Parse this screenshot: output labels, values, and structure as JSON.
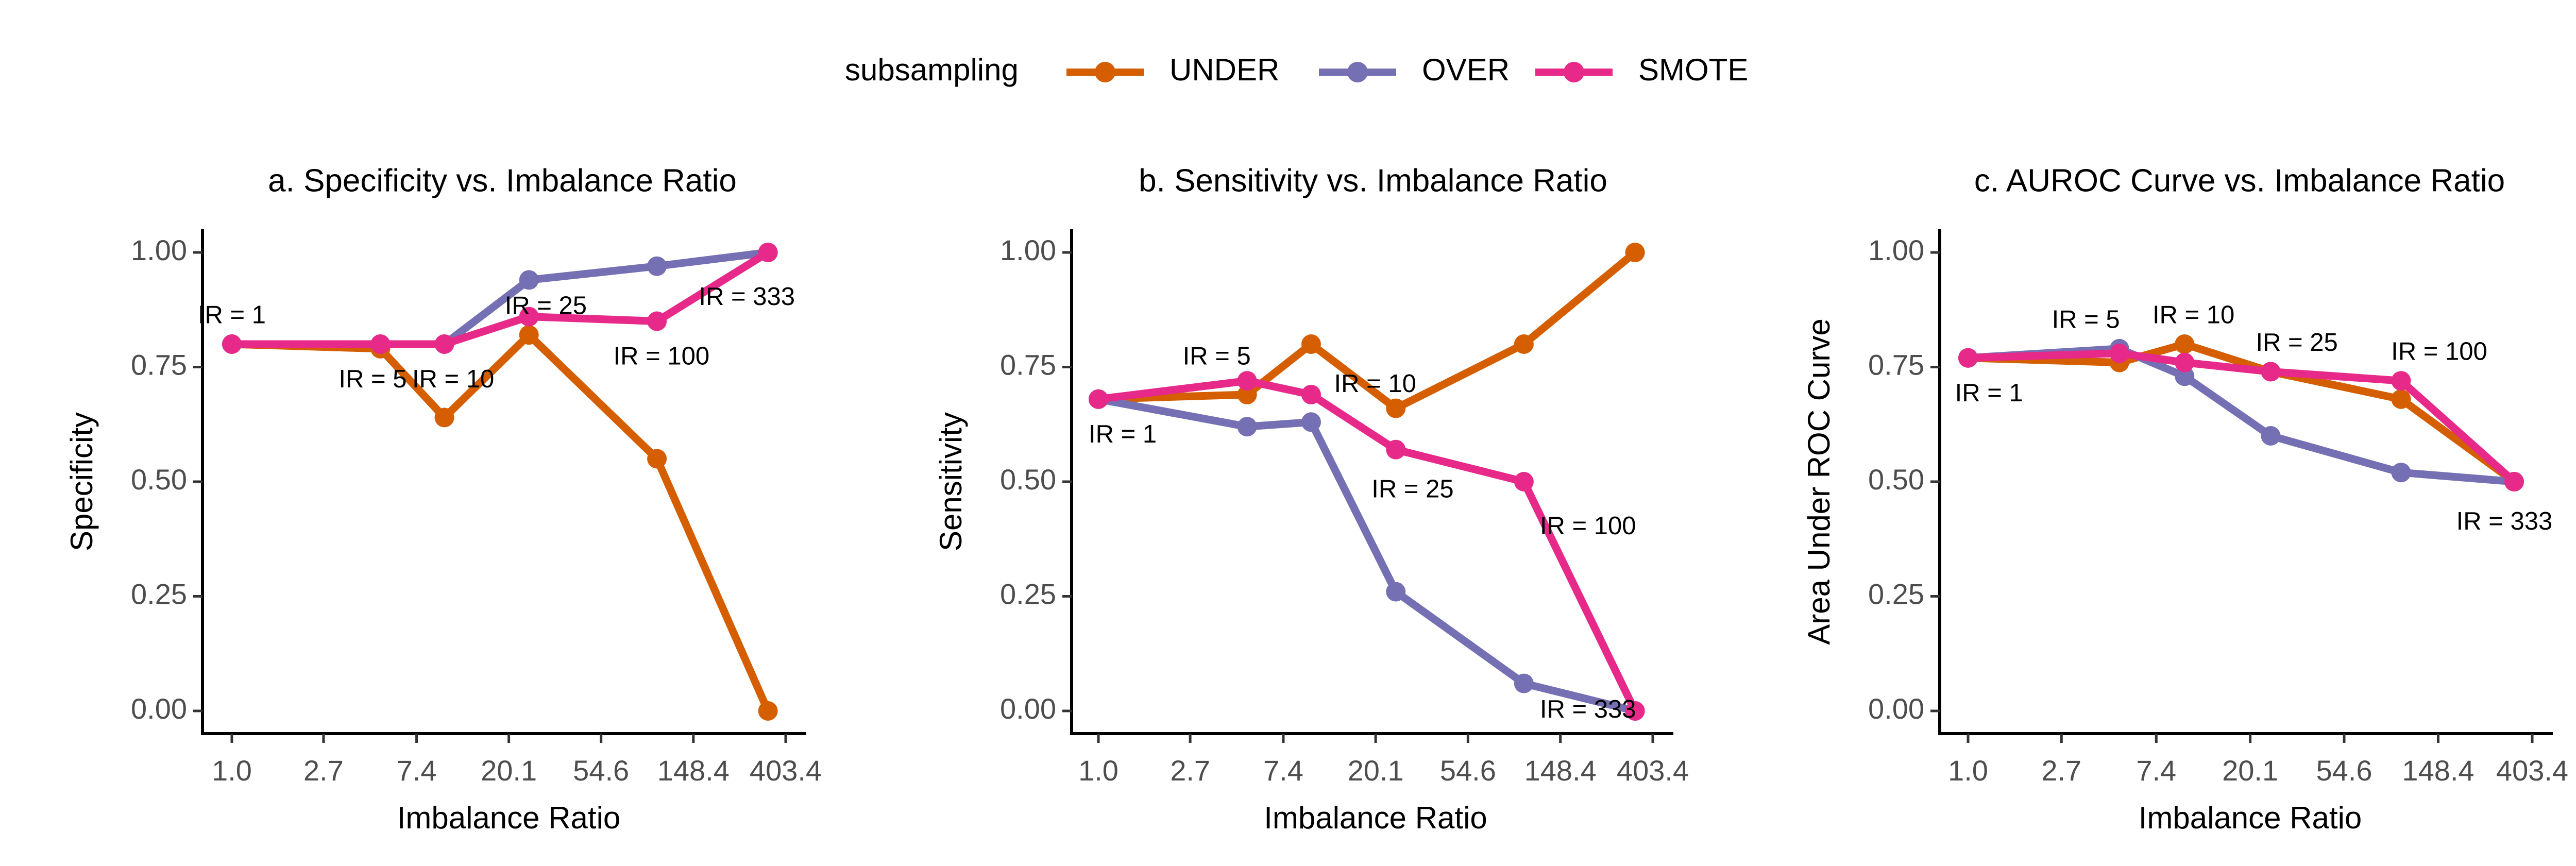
{
  "legend": {
    "title": "subsampling",
    "items": [
      {
        "label": "UNDER",
        "color": "#D55E00"
      },
      {
        "label": "OVER",
        "color": "#7570B3"
      },
      {
        "label": "SMOTE",
        "color": "#E7298A"
      }
    ]
  },
  "chart_data": [
    {
      "type": "line",
      "title": "a. Specificity vs. Imbalance Ratio",
      "xlabel": "Imbalance Ratio",
      "ylabel": "Specificity",
      "x_scale": "log",
      "x": [
        1,
        5,
        10,
        25,
        100,
        333
      ],
      "x_ticks": [
        1.0,
        2.7,
        7.4,
        20.1,
        54.6,
        148.4,
        403.4
      ],
      "x_tick_labels": [
        "1.0",
        "2.7",
        "7.4",
        "20.1",
        "54.6",
        "148.4",
        "403.4"
      ],
      "y_ticks": [
        0,
        0.25,
        0.5,
        0.75,
        1.0
      ],
      "y_tick_labels": [
        "0.00",
        "0.25",
        "0.50",
        "0.75",
        "1.00"
      ],
      "ylim": [
        0,
        1
      ],
      "series": [
        {
          "name": "UNDER",
          "color": "#D55E00",
          "values": [
            0.8,
            0.79,
            0.64,
            0.82,
            0.55,
            0.0
          ]
        },
        {
          "name": "OVER",
          "color": "#7570B3",
          "values": [
            0.8,
            0.8,
            0.8,
            0.94,
            0.97,
            1.0
          ]
        },
        {
          "name": "SMOTE",
          "color": "#E7298A",
          "values": [
            0.8,
            0.8,
            0.8,
            0.86,
            0.85,
            1.0
          ]
        }
      ],
      "annotations": [
        {
          "text": "IR = 1",
          "x": 1,
          "y": 0.86
        },
        {
          "text": "IR = 5",
          "x": 4.6,
          "y": 0.72
        },
        {
          "text": "IR = 10",
          "x": 11,
          "y": 0.72
        },
        {
          "text": "IR = 25",
          "x": 30,
          "y": 0.88
        },
        {
          "text": "IR = 100",
          "x": 105,
          "y": 0.77
        },
        {
          "text": "IR = 333",
          "x": 265,
          "y": 0.9
        }
      ]
    },
    {
      "type": "line",
      "title": "b. Sensitivity vs. Imbalance Ratio",
      "xlabel": "Imbalance Ratio",
      "ylabel": "Sensitivity",
      "x_scale": "log",
      "x": [
        1,
        5,
        10,
        25,
        100,
        333
      ],
      "x_ticks": [
        1.0,
        2.7,
        7.4,
        20.1,
        54.6,
        148.4,
        403.4
      ],
      "x_tick_labels": [
        "1.0",
        "2.7",
        "7.4",
        "20.1",
        "54.6",
        "148.4",
        "403.4"
      ],
      "y_ticks": [
        0,
        0.25,
        0.5,
        0.75,
        1.0
      ],
      "y_tick_labels": [
        "0.00",
        "0.25",
        "0.50",
        "0.75",
        "1.00"
      ],
      "ylim": [
        0,
        1
      ],
      "series": [
        {
          "name": "UNDER",
          "color": "#D55E00",
          "values": [
            0.68,
            0.69,
            0.8,
            0.66,
            0.8,
            1.0
          ]
        },
        {
          "name": "OVER",
          "color": "#7570B3",
          "values": [
            0.68,
            0.62,
            0.63,
            0.26,
            0.06,
            0.0
          ]
        },
        {
          "name": "SMOTE",
          "color": "#E7298A",
          "values": [
            0.68,
            0.72,
            0.69,
            0.57,
            0.5,
            0.0
          ]
        }
      ],
      "annotations": [
        {
          "text": "IR = 1",
          "x": 1.3,
          "y": 0.6
        },
        {
          "text": "IR = 5",
          "x": 3.6,
          "y": 0.77
        },
        {
          "text": "IR = 10",
          "x": 20,
          "y": 0.71
        },
        {
          "text": "IR = 25",
          "x": 30,
          "y": 0.48
        },
        {
          "text": "IR = 100",
          "x": 200,
          "y": 0.4
        },
        {
          "text": "IR = 333",
          "x": 200,
          "y": 0.0
        }
      ]
    },
    {
      "type": "line",
      "title": "c. AUROC Curve vs. Imbalance Ratio",
      "xlabel": "Imbalance Ratio",
      "ylabel": "Area Under ROC Curve",
      "x_scale": "log",
      "x": [
        1,
        5,
        10,
        25,
        100,
        333
      ],
      "x_ticks": [
        1.0,
        2.7,
        7.4,
        20.1,
        54.6,
        148.4,
        403.4
      ],
      "x_tick_labels": [
        "1.0",
        "2.7",
        "7.4",
        "20.1",
        "54.6",
        "148.4",
        "403.4"
      ],
      "y_ticks": [
        0,
        0.25,
        0.5,
        0.75,
        1.0
      ],
      "y_tick_labels": [
        "0.00",
        "0.25",
        "0.50",
        "0.75",
        "1.00"
      ],
      "ylim": [
        0,
        1
      ],
      "series": [
        {
          "name": "UNDER",
          "color": "#D55E00",
          "values": [
            0.77,
            0.76,
            0.8,
            0.74,
            0.68,
            0.5
          ]
        },
        {
          "name": "OVER",
          "color": "#7570B3",
          "values": [
            0.77,
            0.79,
            0.73,
            0.6,
            0.52,
            0.5
          ]
        },
        {
          "name": "SMOTE",
          "color": "#E7298A",
          "values": [
            0.77,
            0.78,
            0.76,
            0.74,
            0.72,
            0.5
          ]
        }
      ],
      "annotations": [
        {
          "text": "IR = 1",
          "x": 1.25,
          "y": 0.69
        },
        {
          "text": "IR = 5",
          "x": 3.5,
          "y": 0.85
        },
        {
          "text": "IR = 10",
          "x": 11,
          "y": 0.86
        },
        {
          "text": "IR = 25",
          "x": 33,
          "y": 0.8
        },
        {
          "text": "IR = 100",
          "x": 150,
          "y": 0.78
        },
        {
          "text": "IR = 333",
          "x": 300,
          "y": 0.41
        }
      ]
    }
  ]
}
